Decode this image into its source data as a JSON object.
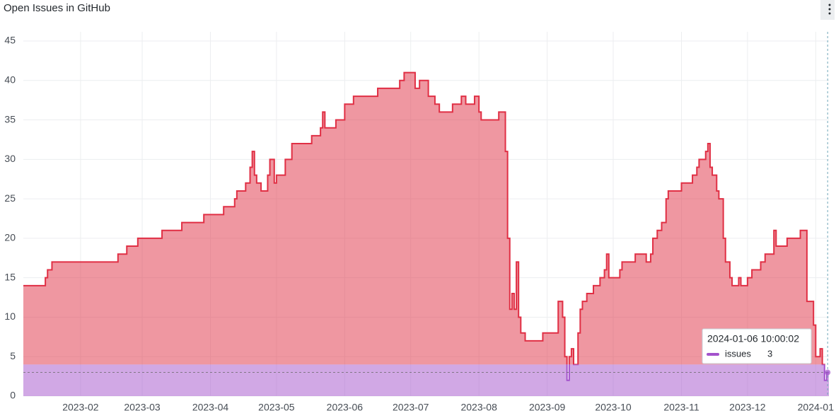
{
  "chart_data": {
    "type": "step-area",
    "title": "Open Issues in GitHub",
    "x": [
      "2023-01-06",
      "2023-01-16",
      "2023-01-17",
      "2023-01-19",
      "2023-02-18",
      "2023-02-22",
      "2023-02-27",
      "2023-03-10",
      "2023-03-19",
      "2023-03-29",
      "2023-04-07",
      "2023-04-12",
      "2023-04-13",
      "2023-04-17",
      "2023-04-19",
      "2023-04-20",
      "2023-04-21",
      "2023-04-22",
      "2023-04-24",
      "2023-04-27",
      "2023-04-28",
      "2023-04-30",
      "2023-05-01",
      "2023-05-05",
      "2023-05-08",
      "2023-05-17",
      "2023-05-21",
      "2023-05-22",
      "2023-05-23",
      "2023-05-28",
      "2023-06-01",
      "2023-06-05",
      "2023-06-16",
      "2023-06-26",
      "2023-06-28",
      "2023-07-03",
      "2023-07-05",
      "2023-07-09",
      "2023-07-12",
      "2023-07-14",
      "2023-07-20",
      "2023-07-24",
      "2023-07-26",
      "2023-07-30",
      "2023-08-01",
      "2023-08-02",
      "2023-08-10",
      "2023-08-13",
      "2023-08-14",
      "2023-08-15",
      "2023-08-16",
      "2023-08-17",
      "2023-08-18",
      "2023-08-19",
      "2023-08-20",
      "2023-08-22",
      "2023-08-30",
      "2023-09-06",
      "2023-09-08",
      "2023-09-09",
      "2023-09-10",
      "2023-09-11",
      "2023-09-12",
      "2023-09-13",
      "2023-09-15",
      "2023-09-16",
      "2023-09-17",
      "2023-09-19",
      "2023-09-22",
      "2023-09-25",
      "2023-09-27",
      "2023-09-28",
      "2023-09-29",
      "2023-10-04",
      "2023-10-05",
      "2023-10-11",
      "2023-10-16",
      "2023-10-18",
      "2023-10-19",
      "2023-10-21",
      "2023-10-23",
      "2023-10-25",
      "2023-10-26",
      "2023-11-01",
      "2023-11-06",
      "2023-11-08",
      "2023-11-09",
      "2023-11-12",
      "2023-11-13",
      "2023-11-14",
      "2023-11-15",
      "2023-11-17",
      "2023-11-18",
      "2023-11-20",
      "2023-11-21",
      "2023-11-23",
      "2023-11-24",
      "2023-11-27",
      "2023-11-28",
      "2023-12-01",
      "2023-12-03",
      "2023-12-07",
      "2023-12-09",
      "2023-12-13",
      "2023-12-14",
      "2023-12-19",
      "2023-12-25",
      "2023-12-28",
      "2023-12-31",
      "2024-01-01",
      "2024-01-03",
      "2024-01-04",
      "2024-01-05",
      "2024-01-06"
    ],
    "series": [
      {
        "name": "issues",
        "color": "#e02f44",
        "values": [
          14,
          15,
          16,
          17,
          18,
          19,
          20,
          21,
          22,
          23,
          24,
          25,
          26,
          27,
          29,
          31,
          28,
          27,
          26,
          28,
          30,
          27,
          28,
          30,
          32,
          33,
          34,
          36,
          34,
          35,
          37,
          38,
          39,
          40,
          41,
          39,
          40,
          38,
          37,
          36,
          37,
          38,
          37,
          38,
          36,
          35,
          36,
          31,
          20,
          11,
          13,
          11,
          17,
          10,
          8,
          7,
          8,
          12,
          10,
          5,
          2,
          5,
          6,
          4,
          8,
          11,
          12,
          13,
          14,
          15,
          16,
          18,
          15,
          16,
          17,
          18,
          17,
          18,
          20,
          21,
          22,
          25,
          26,
          27,
          28,
          29,
          30,
          31,
          32,
          29,
          28,
          26,
          25,
          20,
          17,
          15,
          14,
          15,
          14,
          15,
          16,
          17,
          18,
          21,
          19,
          20,
          21,
          12,
          9,
          5,
          6,
          4,
          2,
          3
        ]
      }
    ],
    "threshold": {
      "value": 4,
      "color": "#a352cc"
    },
    "xlim": [
      "2023-01-06",
      "2024-01-07"
    ],
    "xticks": [
      "2023-02",
      "2023-03",
      "2023-04",
      "2023-05",
      "2023-06",
      "2023-07",
      "2023-08",
      "2023-09",
      "2023-10",
      "2023-11",
      "2023-12",
      "2024-01"
    ],
    "ylim": [
      0,
      45
    ],
    "yticks": [
      0,
      5,
      10,
      15,
      20,
      25,
      30,
      35,
      40,
      45
    ],
    "grid": true,
    "tooltip": {
      "time": "2024-01-06 10:00:02",
      "series": "issues",
      "value": 3
    }
  }
}
